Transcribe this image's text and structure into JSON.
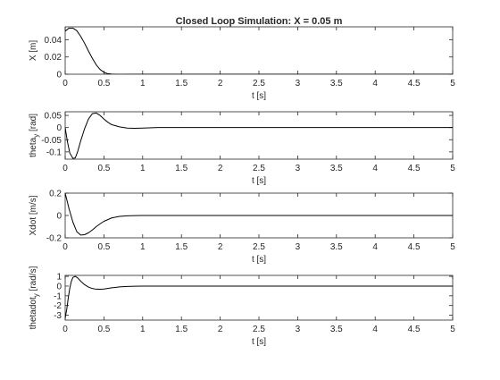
{
  "figure": {
    "title": "Closed Loop Simulation: X = 0.05 m",
    "background": "#ffffff",
    "axes_color": "#262626",
    "line_color": "#000000"
  },
  "chart_data": [
    {
      "type": "line",
      "title": "Closed Loop Simulation: X = 0.05 m",
      "xlabel": "t [s]",
      "ylabel": "X [m]",
      "ylabel_sub": "",
      "ylabel_after": "",
      "xlim": [
        0,
        5
      ],
      "ylim": [
        0,
        0.055
      ],
      "xticks": [
        0,
        0.5,
        1,
        1.5,
        2,
        2.5,
        3,
        3.5,
        4,
        4.5,
        5
      ],
      "xtick_labels": [
        "0",
        "0.5",
        "1",
        "1.5",
        "2",
        "2.5",
        "3",
        "3.5",
        "4",
        "4.5",
        "5"
      ],
      "yticks": [
        0,
        0.02,
        0.04
      ],
      "ytick_labels": [
        "0",
        "0.02",
        "0.04"
      ],
      "grid": false,
      "series": [
        {
          "x": [
            0,
            0.05,
            0.1,
            0.15,
            0.2,
            0.25,
            0.3,
            0.35,
            0.4,
            0.45,
            0.5,
            0.55,
            0.6,
            0.7,
            0.8,
            1.0,
            2.0,
            5.0
          ],
          "y": [
            0.05,
            0.0535,
            0.0535,
            0.0505,
            0.044,
            0.036,
            0.027,
            0.0185,
            0.011,
            0.0055,
            0.0022,
            0.0006,
            0.0001,
            -0.0002,
            -0.0001,
            0,
            0,
            0
          ]
        }
      ]
    },
    {
      "type": "line",
      "title": "",
      "xlabel": "t [s]",
      "ylabel": "theta",
      "ylabel_sub": "y",
      "ylabel_after": " [rad]",
      "xlim": [
        0,
        5
      ],
      "ylim": [
        -0.13,
        0.065
      ],
      "xticks": [
        0,
        0.5,
        1,
        1.5,
        2,
        2.5,
        3,
        3.5,
        4,
        4.5,
        5
      ],
      "xtick_labels": [
        "0",
        "0.5",
        "1",
        "1.5",
        "2",
        "2.5",
        "3",
        "3.5",
        "4",
        "4.5",
        "5"
      ],
      "yticks": [
        0.05,
        0,
        -0.05,
        -0.1
      ],
      "ytick_labels": [
        "0.05",
        "0",
        "-0.05",
        "-0.1"
      ],
      "grid": false,
      "series": [
        {
          "x": [
            0,
            0.03,
            0.06,
            0.1,
            0.13,
            0.16,
            0.2,
            0.25,
            0.3,
            0.35,
            0.4,
            0.45,
            0.5,
            0.55,
            0.6,
            0.7,
            0.8,
            0.9,
            1.0,
            1.2,
            5.0
          ],
          "y": [
            0,
            -0.06,
            -0.105,
            -0.127,
            -0.125,
            -0.1,
            -0.055,
            -0.005,
            0.035,
            0.057,
            0.06,
            0.05,
            0.035,
            0.022,
            0.012,
            0.003,
            -0.002,
            -0.003,
            -0.002,
            0,
            0
          ]
        }
      ]
    },
    {
      "type": "line",
      "title": "",
      "xlabel": "t [s]",
      "ylabel": "Xdot [m/s]",
      "ylabel_sub": "",
      "ylabel_after": "",
      "xlim": [
        0,
        5
      ],
      "ylim": [
        -0.2,
        0.2
      ],
      "xticks": [
        0,
        0.5,
        1,
        1.5,
        2,
        2.5,
        3,
        3.5,
        4,
        4.5,
        5
      ],
      "xtick_labels": [
        "0",
        "0.5",
        "1",
        "1.5",
        "2",
        "2.5",
        "3",
        "3.5",
        "4",
        "4.5",
        "5"
      ],
      "yticks": [
        0.2,
        0,
        -0.2
      ],
      "ytick_labels": [
        "0.2",
        "0",
        "-0.2"
      ],
      "grid": false,
      "series": [
        {
          "x": [
            0,
            0.05,
            0.1,
            0.15,
            0.2,
            0.25,
            0.3,
            0.35,
            0.4,
            0.45,
            0.5,
            0.6,
            0.7,
            0.8,
            0.9,
            1.0,
            5.0
          ],
          "y": [
            0.2,
            0.06,
            -0.06,
            -0.145,
            -0.175,
            -0.172,
            -0.155,
            -0.13,
            -0.1,
            -0.075,
            -0.052,
            -0.022,
            -0.008,
            -0.003,
            -0.001,
            0,
            0
          ]
        }
      ]
    },
    {
      "type": "line",
      "title": "",
      "xlabel": "t [s]",
      "ylabel": "thetadot",
      "ylabel_sub": "y",
      "ylabel_after": " [rad/s]",
      "xlim": [
        0,
        5
      ],
      "ylim": [
        -3.5,
        1.1
      ],
      "xticks": [
        0,
        0.5,
        1,
        1.5,
        2,
        2.5,
        3,
        3.5,
        4,
        4.5,
        5
      ],
      "xtick_labels": [
        "0",
        "0.5",
        "1",
        "1.5",
        "2",
        "2.5",
        "3",
        "3.5",
        "4",
        "4.5",
        "5"
      ],
      "yticks": [
        1,
        0,
        -1,
        -2,
        -3
      ],
      "ytick_labels": [
        "1",
        "0",
        "-1",
        "-2",
        "-3"
      ],
      "grid": false,
      "series": [
        {
          "x": [
            0,
            0.02,
            0.04,
            0.06,
            0.08,
            0.1,
            0.13,
            0.16,
            0.2,
            0.25,
            0.3,
            0.35,
            0.4,
            0.45,
            0.5,
            0.55,
            0.6,
            0.7,
            0.8,
            0.9,
            1.0,
            5.0
          ],
          "y": [
            -3.3,
            -2.4,
            -1.2,
            -0.2,
            0.5,
            0.9,
            1.0,
            0.85,
            0.5,
            0.15,
            -0.1,
            -0.25,
            -0.32,
            -0.33,
            -0.3,
            -0.24,
            -0.18,
            -0.09,
            -0.04,
            -0.01,
            0,
            0
          ]
        }
      ]
    }
  ]
}
